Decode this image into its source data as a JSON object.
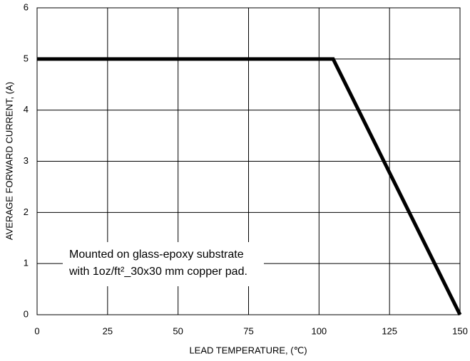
{
  "chart_data": {
    "type": "line",
    "x_label": "LEAD TEMPERATURE, (℃)",
    "y_label": "AVERAGE FORWARD CURRENT, (A)",
    "annotation": [
      "Mounted on glass-epoxy substrate",
      "with 1oz/ft²_30x30 mm copper pad."
    ],
    "x": [
      0,
      105,
      150
    ],
    "series": [
      {
        "name": null,
        "color": "#000000",
        "values": [
          5,
          5,
          0
        ]
      }
    ],
    "xlim": [
      0,
      150
    ],
    "xticks": [
      0,
      25,
      50,
      75,
      100,
      125,
      150
    ],
    "ylim": [
      0,
      6
    ],
    "yticks": [
      0,
      1,
      2,
      3,
      4,
      5,
      6
    ],
    "grid": true
  }
}
